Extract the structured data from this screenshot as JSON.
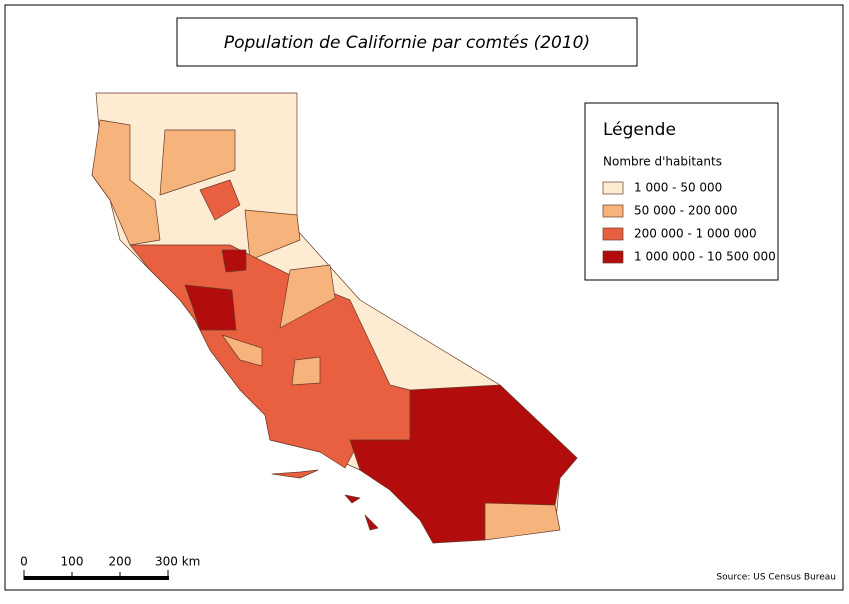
{
  "header": {
    "title": "Population de Californie par comtés (2010)"
  },
  "legend": {
    "title": "Légende",
    "subtitle": "Nombre d'habitants",
    "classes": [
      {
        "label": "1 000 - 50 000",
        "color": "#fdebd2"
      },
      {
        "label": "50 000 - 200 000",
        "color": "#f7b37c"
      },
      {
        "label": "200 000 - 1 000 000",
        "color": "#e8603f"
      },
      {
        "label": "1 000 000 - 10 500 000",
        "color": "#b30c0c"
      }
    ]
  },
  "scale_bar": {
    "labels": [
      "0",
      "100",
      "200",
      "300 km"
    ]
  },
  "source": "Source: US Census Bureau"
}
